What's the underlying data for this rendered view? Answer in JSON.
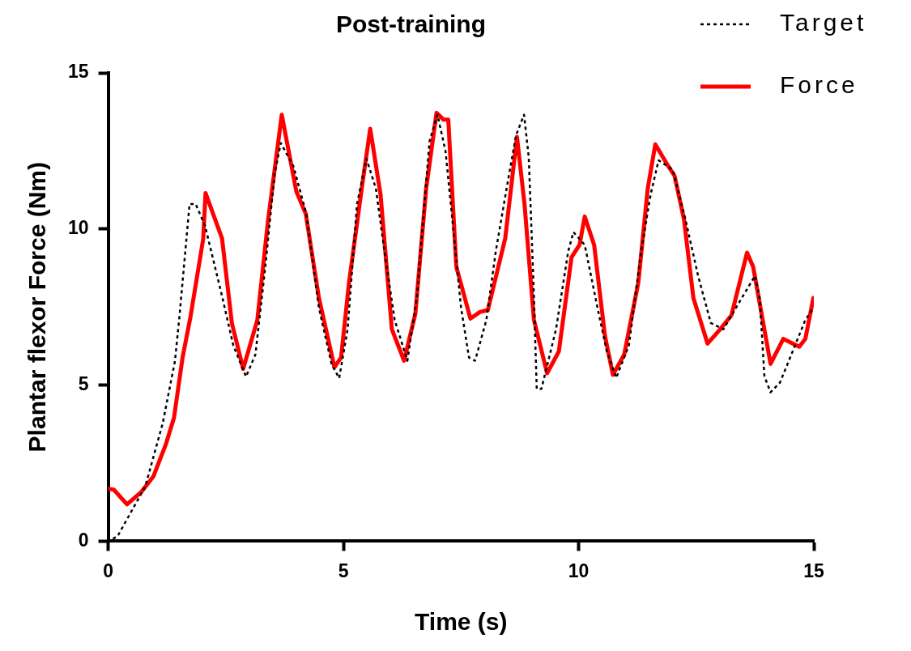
{
  "chart_data": {
    "type": "line",
    "title": "Post-training",
    "xlabel": "Time (s)",
    "ylabel": "Plantar flexor Force (Nm)",
    "xlim": [
      0,
      15
    ],
    "xticks": [
      0,
      5,
      10,
      15
    ],
    "ylim": [
      0,
      15
    ],
    "yticks": [
      0,
      5,
      10,
      15
    ],
    "grid": false,
    "legend": "top right",
    "marker": "none",
    "series": [
      {
        "name": "Target",
        "color": "#000000",
        "line_style": "dotted",
        "x": [
          0.1,
          0.2,
          0.79,
          1.16,
          1.42,
          1.52,
          1.73,
          1.86,
          2.06,
          2.43,
          2.66,
          2.93,
          3.13,
          3.34,
          3.54,
          3.67,
          3.94,
          4.21,
          4.48,
          4.75,
          4.91,
          5.09,
          5.29,
          5.49,
          5.69,
          5.89,
          6.09,
          6.36,
          6.56,
          6.83,
          7.0,
          7.17,
          7.33,
          7.5,
          7.67,
          7.8,
          8.04,
          8.24,
          8.47,
          8.67,
          8.84,
          8.94,
          9.04,
          9.11,
          9.21,
          9.52,
          9.78,
          9.89,
          10.13,
          10.4,
          10.6,
          10.8,
          11.07,
          11.33,
          11.53,
          11.7,
          12.0,
          12.27,
          12.54,
          12.81,
          13.08,
          13.35,
          13.75,
          13.85,
          13.95,
          14.08,
          14.28,
          14.55,
          14.82,
          14.96
        ],
        "values": [
          0.08,
          0.16,
          1.76,
          3.78,
          5.77,
          7.28,
          10.8,
          10.8,
          10.1,
          7.79,
          6.27,
          5.27,
          5.98,
          8.79,
          11.8,
          12.75,
          12.0,
          10.49,
          7.47,
          5.67,
          5.22,
          6.79,
          10.8,
          12.25,
          11.3,
          9.1,
          7.09,
          5.78,
          7.79,
          12.8,
          13.66,
          12.5,
          10.1,
          7.49,
          5.88,
          5.78,
          7.09,
          9.29,
          11.3,
          13.0,
          13.66,
          12.3,
          8.29,
          4.88,
          4.88,
          6.79,
          9.29,
          9.9,
          9.49,
          7.49,
          6.08,
          5.23,
          6.28,
          9.29,
          11.1,
          12.2,
          11.9,
          10.31,
          8.5,
          6.99,
          6.79,
          7.49,
          8.5,
          7.79,
          5.28,
          4.77,
          5.08,
          6.08,
          7.09,
          7.4
        ]
      },
      {
        "name": "Force",
        "color": "#ff0000",
        "line_style": "solid",
        "x": [
          0,
          0.12,
          0.4,
          0.7,
          0.96,
          1.23,
          1.4,
          1.58,
          1.75,
          2.02,
          2.07,
          2.42,
          2.63,
          2.87,
          3.17,
          3.4,
          3.69,
          4.0,
          4.2,
          4.48,
          4.81,
          4.95,
          5.12,
          5.39,
          5.57,
          5.79,
          6.03,
          6.29,
          6.53,
          6.76,
          6.98,
          7.13,
          7.23,
          7.4,
          7.7,
          7.9,
          8.07,
          8.44,
          8.69,
          8.85,
          9.05,
          9.33,
          9.58,
          9.85,
          10.02,
          10.13,
          10.33,
          10.56,
          10.73,
          10.97,
          11.27,
          11.47,
          11.63,
          11.87,
          12.04,
          12.24,
          12.44,
          12.74,
          13.01,
          13.25,
          13.58,
          13.71,
          14.08,
          14.35,
          14.69,
          14.82,
          14.99
        ],
        "values": [
          1.68,
          1.65,
          1.18,
          1.57,
          2.07,
          3.12,
          3.96,
          5.87,
          7.19,
          9.68,
          11.15,
          9.7,
          6.98,
          5.52,
          7.08,
          10.29,
          13.66,
          11.2,
          10.49,
          7.79,
          5.57,
          5.88,
          8.29,
          11.3,
          13.21,
          11.1,
          6.79,
          5.78,
          7.29,
          11.3,
          13.72,
          13.5,
          13.5,
          8.79,
          7.13,
          7.34,
          7.4,
          9.7,
          12.95,
          10.8,
          7.09,
          5.38,
          6.08,
          9.1,
          9.49,
          10.4,
          9.49,
          6.58,
          5.33,
          5.98,
          8.29,
          11.3,
          12.71,
          12.1,
          11.7,
          10.31,
          7.79,
          6.33,
          6.79,
          7.24,
          9.24,
          8.79,
          5.68,
          6.48,
          6.23,
          6.48,
          7.79
        ]
      }
    ]
  }
}
